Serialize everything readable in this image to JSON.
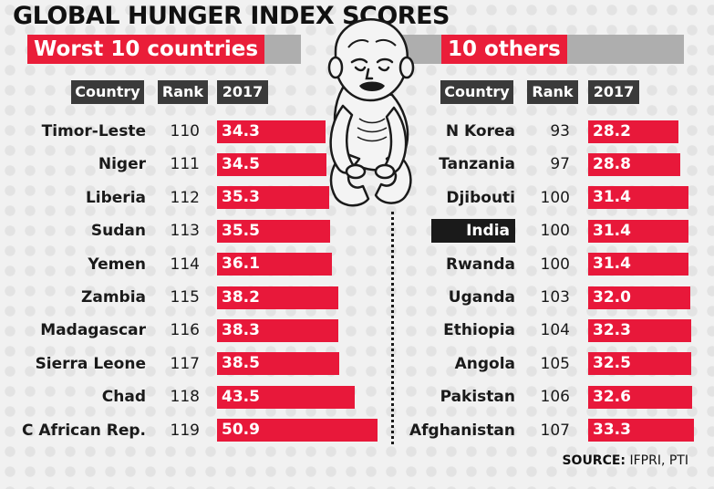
{
  "title": "GLOBAL HUNGER INDEX SCORES",
  "accent_color": "#ea1d39",
  "band_color": "#aeaeae",
  "headers": {
    "country": "Country",
    "rank": "Rank",
    "year": "2017"
  },
  "chart_data": [
    {
      "type": "bar",
      "title": "Worst 10 countries",
      "categories": [
        "Timor-Leste",
        "Niger",
        "Liberia",
        "Sudan",
        "Yemen",
        "Zambia",
        "Madagascar",
        "Sierra Leone",
        "Chad",
        "C African Rep."
      ],
      "ranks": [
        "110",
        "111",
        "112",
        "113",
        "114",
        "115",
        "116",
        "117",
        "118",
        "119"
      ],
      "values": [
        34.3,
        34.5,
        35.3,
        35.5,
        36.1,
        38.2,
        38.3,
        38.5,
        43.5,
        50.9
      ],
      "value_labels": [
        "34.3",
        "34.5",
        "35.3",
        "35.5",
        "36.1",
        "38.2",
        "38.3",
        "38.5",
        "43.5",
        "50.9"
      ],
      "highlight": ""
    },
    {
      "type": "bar",
      "title": "10 others",
      "categories": [
        "N Korea",
        "Tanzania",
        "Djibouti",
        "India",
        "Rwanda",
        "Uganda",
        "Ethiopia",
        "Angola",
        "Pakistan",
        "Afghanistan"
      ],
      "ranks": [
        "93",
        "97",
        "100",
        "100",
        "100",
        "103",
        "104",
        "105",
        "106",
        "107"
      ],
      "values": [
        28.2,
        28.8,
        31.4,
        31.4,
        31.4,
        32.0,
        32.3,
        32.5,
        32.6,
        33.3
      ],
      "value_labels": [
        "28.2",
        "28.8",
        "31.4",
        "31.4",
        "31.4",
        "32.0",
        "32.3",
        "32.5",
        "32.6",
        "33.3"
      ],
      "highlight": "India"
    }
  ],
  "source": {
    "label": "SOURCE:",
    "text": " IFPRI, PTI"
  }
}
